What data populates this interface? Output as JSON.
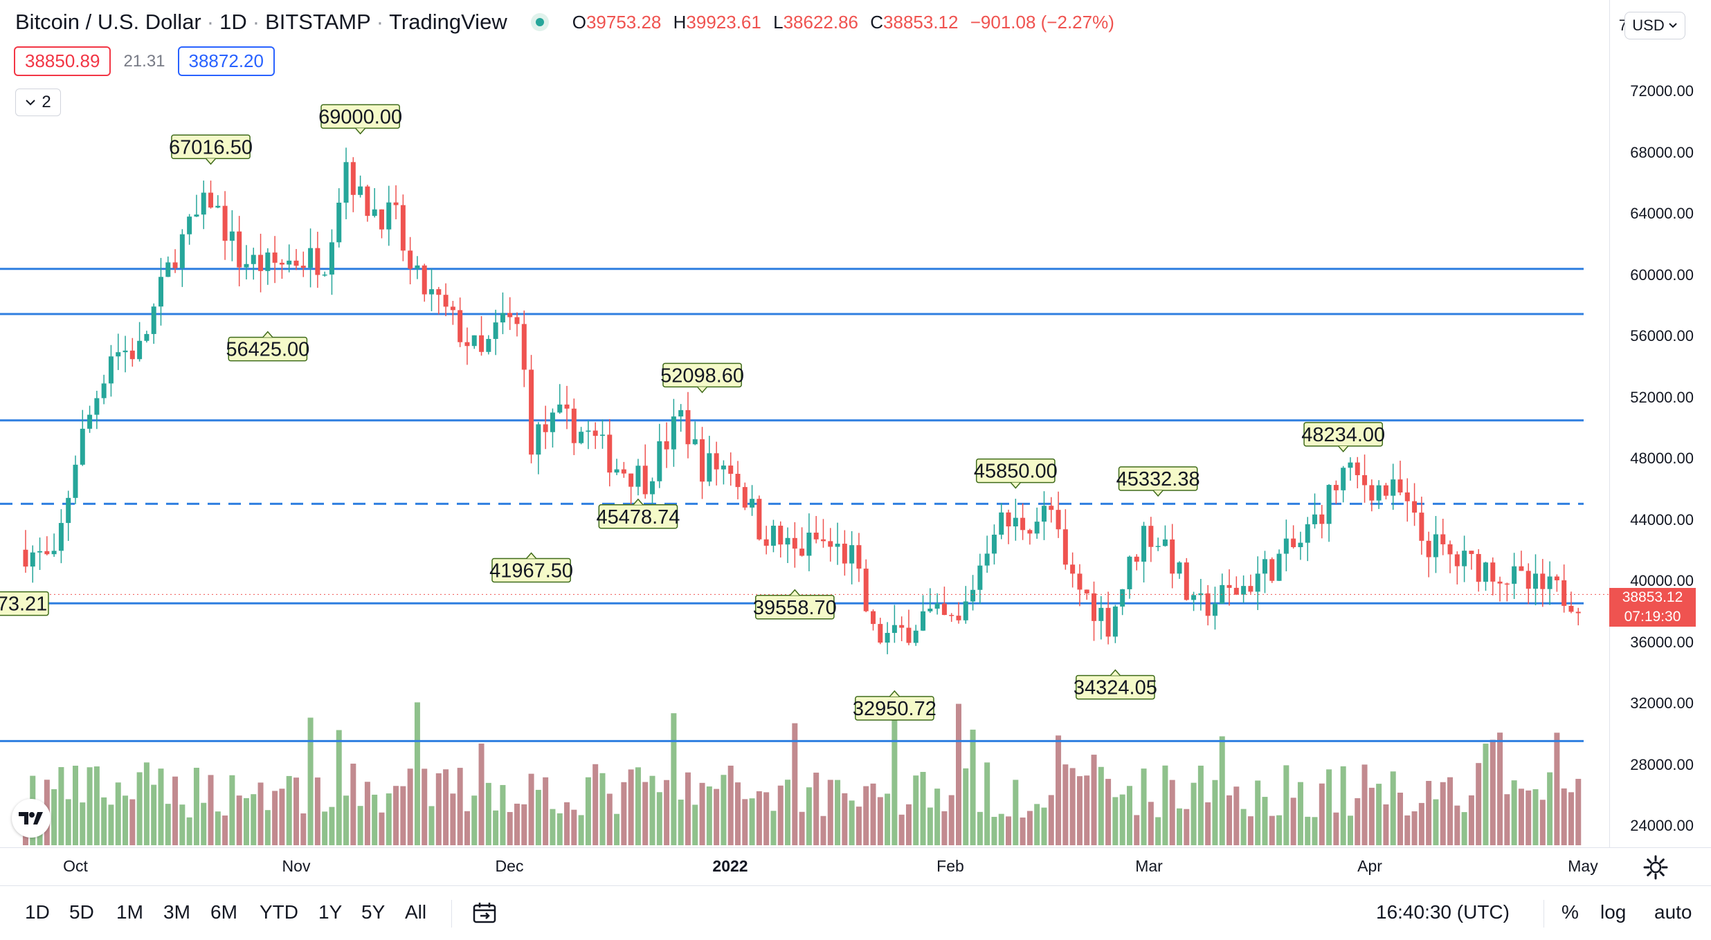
{
  "legend": {
    "symbol": "Bitcoin / U.S. Dollar",
    "interval": "1D",
    "exchange": "BITSTAMP",
    "platform": "TradingView",
    "open_label": "O",
    "open": "39753.28",
    "high_label": "H",
    "high": "39923.61",
    "low_label": "L",
    "low": "38622.86",
    "close_label": "C",
    "close": "38853.12",
    "change": "−901.08 (−2.27%)"
  },
  "quote": {
    "sell": "38850.89",
    "spread": "21.31",
    "buy": "38872.20"
  },
  "indicators_toggle": {
    "count": "2"
  },
  "currency": "USD",
  "price_axis": {
    "top_partial": "7",
    "labels": [
      "72000.00",
      "68000.00",
      "64000.00",
      "60000.00",
      "56000.00",
      "52000.00",
      "48000.00",
      "44000.00",
      "40000.00",
      "36000.00",
      "32000.00",
      "28000.00",
      "24000.00"
    ],
    "current_price": "38853.12",
    "countdown": "07:19:30"
  },
  "time_axis": [
    "Oct",
    "Nov",
    "Dec",
    "2022",
    "Feb",
    "Mar",
    "Apr",
    "May"
  ],
  "toolbar": {
    "ranges": [
      "1D",
      "5D",
      "1M",
      "3M",
      "6M",
      "YTD",
      "1Y",
      "5Y",
      "All"
    ],
    "clock": "16:40:30 (UTC)",
    "percent": "%",
    "log": "log",
    "auto": "auto"
  },
  "colors": {
    "up": "#26a69a",
    "down": "#ef5350",
    "level_line": "#2f7fe0",
    "label_bg": "#f5fac9",
    "label_border": "#3f6b1a",
    "vol_up": "#8fc18c",
    "vol_down": "#c28a8f"
  },
  "chart_data": {
    "type": "candlestick",
    "title": "Bitcoin / U.S. Dollar",
    "x_range": [
      "2021-09-24",
      "2022-04-30"
    ],
    "y_range": [
      22000,
      76000
    ],
    "grid": false,
    "annotations": [
      {
        "date": "2021-10-20",
        "price": 67016.5,
        "label": "67016.50",
        "pos": "above"
      },
      {
        "date": "2021-11-10",
        "price": 69000.0,
        "label": "69000.00",
        "pos": "above"
      },
      {
        "date": "2021-10-28",
        "price": 56425.0,
        "label": "56425.00",
        "pos": "below"
      },
      {
        "date": "2021-12-28",
        "price": 52098.6,
        "label": "52098.60",
        "pos": "above"
      },
      {
        "date": "2021-12-04",
        "price": 41967.5,
        "label": "41967.50",
        "pos": "below"
      },
      {
        "date": "2021-12-19",
        "price": 45478.74,
        "label": "45478.74",
        "pos": "below"
      },
      {
        "date": "2022-01-10",
        "price": 39558.7,
        "label": "39558.70",
        "pos": "below"
      },
      {
        "date": "2022-01-24",
        "price": 32950.72,
        "label": "32950.72",
        "pos": "below"
      },
      {
        "date": "2022-02-10",
        "price": 45850.0,
        "label": "45850.00",
        "pos": "above"
      },
      {
        "date": "2022-02-24",
        "price": 34324.05,
        "label": "34324.05",
        "pos": "below"
      },
      {
        "date": "2022-03-02",
        "price": 45332.38,
        "label": "45332.38",
        "pos": "above"
      },
      {
        "date": "2022-03-28",
        "price": 48234.0,
        "label": "48234.00",
        "pos": "above"
      },
      {
        "date": "2021-09-24",
        "price": 38573.21,
        "label": "73.21",
        "pos": "left"
      }
    ],
    "horizontal_levels": [
      {
        "price": 60350,
        "style": "solid"
      },
      {
        "price": 57400,
        "style": "solid"
      },
      {
        "price": 50450,
        "style": "solid"
      },
      {
        "price": 45000,
        "style": "dashed"
      },
      {
        "price": 38500,
        "style": "solid"
      },
      {
        "price": 29500,
        "style": "solid"
      }
    ],
    "series": [
      {
        "name": "BTCUSD",
        "key_points": [
          [
            "2021-09-24",
            42000
          ],
          [
            "2021-09-28",
            41000
          ],
          [
            "2021-10-01",
            48000
          ],
          [
            "2021-10-06",
            55000
          ],
          [
            "2021-10-10",
            55000
          ],
          [
            "2021-10-15",
            61500
          ],
          [
            "2021-10-20",
            65000
          ],
          [
            "2021-10-24",
            61000
          ],
          [
            "2021-10-28",
            60500
          ],
          [
            "2021-11-01",
            61000
          ],
          [
            "2021-11-05",
            61000
          ],
          [
            "2021-11-08",
            67500
          ],
          [
            "2021-11-10",
            64800
          ],
          [
            "2021-11-15",
            63500
          ],
          [
            "2021-11-17",
            60000
          ],
          [
            "2021-11-21",
            58000
          ],
          [
            "2021-11-27",
            54500
          ],
          [
            "2021-11-30",
            57000
          ],
          [
            "2021-12-02",
            56500
          ],
          [
            "2021-12-03",
            53500
          ],
          [
            "2021-12-04",
            49200
          ],
          [
            "2021-12-08",
            50500
          ],
          [
            "2021-12-12",
            49500
          ],
          [
            "2021-12-16",
            47500
          ],
          [
            "2021-12-20",
            46700
          ],
          [
            "2021-12-25",
            50700
          ],
          [
            "2021-12-28",
            47500
          ],
          [
            "2022-01-01",
            47500
          ],
          [
            "2022-01-05",
            43500
          ],
          [
            "2022-01-10",
            41800
          ],
          [
            "2022-01-13",
            42600
          ],
          [
            "2022-01-18",
            41500
          ],
          [
            "2022-01-21",
            36400
          ],
          [
            "2022-01-24",
            36200
          ],
          [
            "2022-01-28",
            37700
          ],
          [
            "2022-02-02",
            37000
          ],
          [
            "2022-02-07",
            43800
          ],
          [
            "2022-02-10",
            43600
          ],
          [
            "2022-02-15",
            44500
          ],
          [
            "2022-02-17",
            40500
          ],
          [
            "2022-02-23",
            37300
          ],
          [
            "2022-02-28",
            43200
          ],
          [
            "2022-03-03",
            42400
          ],
          [
            "2022-03-07",
            38000
          ],
          [
            "2022-03-14",
            39600
          ],
          [
            "2022-03-18",
            41000
          ],
          [
            "2022-03-22",
            42400
          ],
          [
            "2022-03-28",
            47000
          ],
          [
            "2022-04-01",
            46200
          ],
          [
            "2022-04-05",
            45500
          ],
          [
            "2022-04-08",
            42700
          ],
          [
            "2022-04-13",
            41200
          ],
          [
            "2022-04-18",
            40800
          ],
          [
            "2022-04-23",
            39500
          ],
          [
            "2022-04-27",
            39200
          ],
          [
            "2022-04-30",
            38853
          ]
        ]
      },
      {
        "name": "Volume",
        "note": "volume bars along the bottom, colored by candle direction"
      }
    ]
  }
}
